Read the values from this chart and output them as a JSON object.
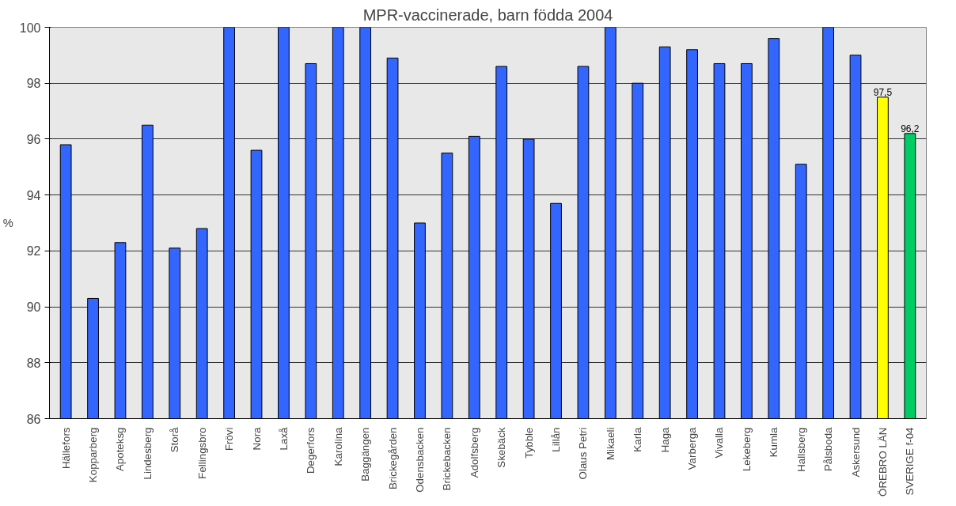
{
  "chart_data": {
    "type": "bar",
    "title": "MPR-vaccinerade, barn födda 2004",
    "ylabel": "%",
    "categories": [
      "Hällefors",
      "Kopparberg",
      "Apoteksg",
      "Lindesberg",
      "Storå",
      "Fellingsbro",
      "Frövi",
      "Nora",
      "Laxå",
      "Degerfors",
      "Karolina",
      "Baggängen",
      "Brickegården",
      "Odensbacken",
      "Brickebacken",
      "Adolfsberg",
      "Skebäck",
      "Tybble",
      "Lillån",
      "Olaus Petri",
      "Mikaeli",
      "Karla",
      "Haga",
      "Varberga",
      "Vivalla",
      "Lekeberg",
      "Kumla",
      "Hallsberg",
      "Pålsboda",
      "Askersund",
      "ÖREBRO LÄN",
      "SVERIGE f-04"
    ],
    "values": [
      95.8,
      90.3,
      92.3,
      96.5,
      92.1,
      92.8,
      100,
      95.6,
      100,
      98.7,
      100,
      100,
      98.9,
      93.0,
      95.5,
      96.1,
      98.6,
      96.0,
      93.7,
      98.6,
      100,
      98.0,
      99.3,
      99.2,
      98.7,
      98.7,
      99.6,
      95.1,
      100,
      99.0,
      97.5,
      96.2
    ],
    "colors": [
      "#3366ff",
      "#3366ff",
      "#3366ff",
      "#3366ff",
      "#3366ff",
      "#3366ff",
      "#3366ff",
      "#3366ff",
      "#3366ff",
      "#3366ff",
      "#3366ff",
      "#3366ff",
      "#3366ff",
      "#3366ff",
      "#3366ff",
      "#3366ff",
      "#3366ff",
      "#3366ff",
      "#3366ff",
      "#3366ff",
      "#3366ff",
      "#3366ff",
      "#3366ff",
      "#3366ff",
      "#3366ff",
      "#3366ff",
      "#3366ff",
      "#3366ff",
      "#3366ff",
      "#3366ff",
      "#ffff00",
      "#00cc66"
    ],
    "value_labels": [
      null,
      null,
      null,
      null,
      null,
      null,
      null,
      null,
      null,
      null,
      null,
      null,
      null,
      null,
      null,
      null,
      null,
      null,
      null,
      null,
      null,
      null,
      null,
      null,
      null,
      null,
      null,
      null,
      null,
      null,
      "97,5",
      "96,2"
    ],
    "ylim": [
      86,
      100
    ],
    "yticks": [
      86,
      88,
      90,
      92,
      94,
      96,
      98,
      100
    ],
    "grid": "y"
  }
}
